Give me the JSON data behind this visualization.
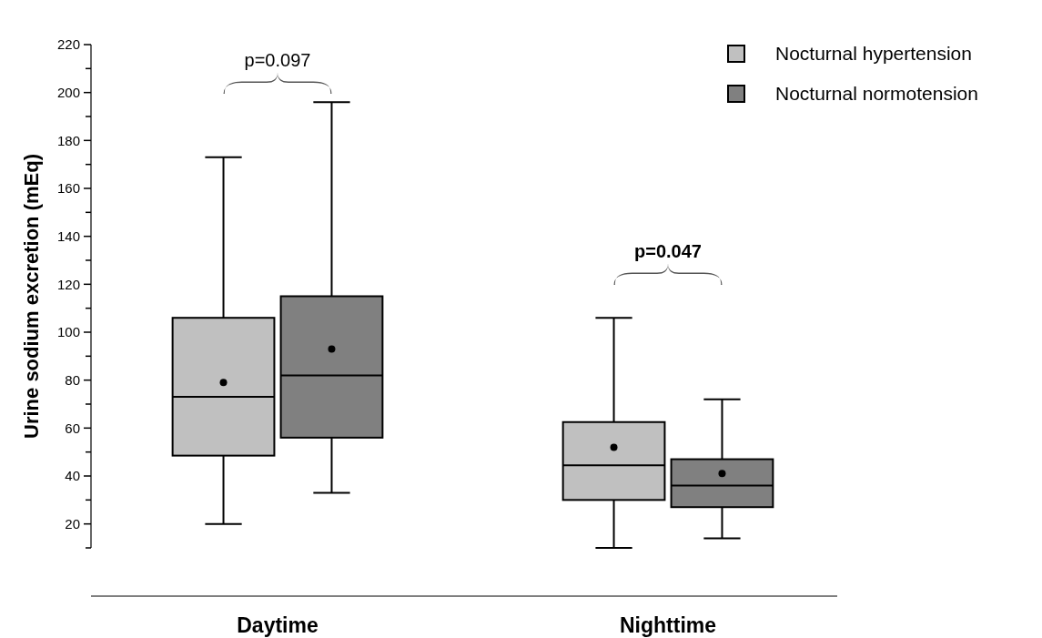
{
  "chart_data": {
    "type": "box",
    "ylabel": "Urine sodium excretion (mEq)",
    "categories": [
      "Daytime",
      "Nighttime"
    ],
    "ylim": [
      10,
      220
    ],
    "yticks": [
      {
        "value": 10,
        "label": null
      },
      20,
      {
        "value": 30,
        "label": null
      },
      40,
      {
        "value": 50,
        "label": null
      },
      60,
      {
        "value": 70,
        "label": null
      },
      80,
      {
        "value": 90,
        "label": null
      },
      100,
      {
        "value": 110,
        "label": null
      },
      120,
      {
        "value": 130,
        "label": null
      },
      140,
      {
        "value": 150,
        "label": null
      },
      160,
      {
        "value": 170,
        "label": null
      },
      180,
      {
        "value": 190,
        "label": null
      },
      200,
      {
        "value": 210,
        "label": null
      },
      220
    ],
    "legend": "top right",
    "series": [
      {
        "name": "Nocturnal hypertension",
        "color": "#c0c0c0",
        "boxes": [
          {
            "low": 20,
            "q1": 48.5,
            "median": 73,
            "q3": 106,
            "high": 173,
            "mean": 79
          },
          {
            "low": 10,
            "q1": 30,
            "median": 44.5,
            "q3": 62.5,
            "high": 106,
            "mean": 52
          }
        ]
      },
      {
        "name": "Nocturnal normotension",
        "color": "#808080",
        "boxes": [
          {
            "low": 33,
            "q1": 56,
            "median": 82,
            "q3": 115,
            "high": 196,
            "mean": 93
          },
          {
            "low": 14,
            "q1": 27,
            "median": 36,
            "q3": 47,
            "high": 72,
            "mean": 41
          }
        ]
      }
    ],
    "annotations": [
      "p=0.097",
      "p=0.047"
    ]
  }
}
